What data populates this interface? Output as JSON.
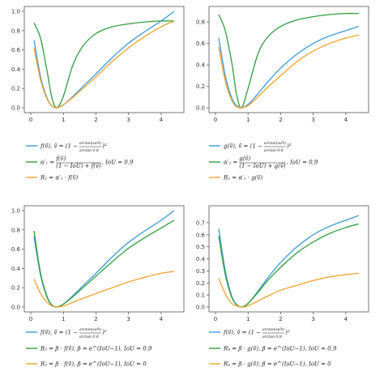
{
  "colors": {
    "blue": "#3a9ad9",
    "green": "#2e9e3e",
    "orange": "#f2a12a"
  },
  "chart_data": [
    {
      "type": "line",
      "xlim": [
        0,
        4.5
      ],
      "ylim": [
        0,
        1.0
      ],
      "xticks": [
        "0",
        "1",
        "2",
        "3",
        "4"
      ],
      "yticks": [
        "0.0",
        "0.2",
        "0.4",
        "0.6",
        "0.8",
        "1.0"
      ],
      "grid": false,
      "series": [
        {
          "color": "#3a9ad9",
          "x": [
            0.1,
            0.3,
            0.5,
            0.65,
            0.8,
            1.0,
            1.3,
            1.6,
            2.0,
            2.5,
            3.0,
            3.5,
            4.0,
            4.4
          ],
          "y": [
            0.7,
            0.32,
            0.1,
            0.02,
            0.0,
            0.03,
            0.12,
            0.22,
            0.35,
            0.52,
            0.67,
            0.79,
            0.9,
            1.0
          ]
        },
        {
          "color": "#2e9e3e",
          "x": [
            0.1,
            0.3,
            0.5,
            0.65,
            0.8,
            1.0,
            1.3,
            1.6,
            2.0,
            2.5,
            3.0,
            3.5,
            4.0,
            4.4
          ],
          "y": [
            0.88,
            0.72,
            0.38,
            0.1,
            0.0,
            0.12,
            0.45,
            0.64,
            0.77,
            0.84,
            0.87,
            0.89,
            0.9,
            0.9
          ]
        },
        {
          "color": "#f2a12a",
          "x": [
            0.1,
            0.3,
            0.5,
            0.65,
            0.8,
            1.0,
            1.3,
            1.6,
            2.0,
            2.5,
            3.0,
            3.5,
            4.0,
            4.4
          ],
          "y": [
            0.62,
            0.29,
            0.09,
            0.02,
            0.0,
            0.03,
            0.11,
            0.2,
            0.32,
            0.48,
            0.62,
            0.74,
            0.84,
            0.9
          ]
        }
      ],
      "legend": [
        {
          "color": "#3a9ad9",
          "text": "f(v̄), v̄ = (1 −",
          "frac_num": "arctan(w/h)",
          "frac_den": "arctan 0.8",
          "tail": ")²"
        },
        {
          "color": "#2e9e3e",
          "text": "α′₁ =",
          "frac_num": "f(v̄)",
          "frac_den": "(1 − IoU) + f(v̄)",
          "tail": ", IoU = 0.9"
        },
        {
          "color": "#f2a12a",
          "text": "R₁ = α′₁ · f(v̄)",
          "frac_num": "",
          "frac_den": "",
          "tail": ""
        }
      ]
    },
    {
      "type": "line",
      "xlim": [
        0,
        4.5
      ],
      "ylim": [
        0,
        0.9
      ],
      "xticks": [
        "0",
        "1",
        "2",
        "3",
        "4"
      ],
      "yticks": [
        "0.0",
        "0.2",
        "0.4",
        "0.6",
        "0.8"
      ],
      "grid": false,
      "series": [
        {
          "color": "#3a9ad9",
          "x": [
            0.1,
            0.3,
            0.5,
            0.65,
            0.8,
            1.0,
            1.3,
            1.6,
            2.0,
            2.5,
            3.0,
            3.5,
            4.0,
            4.4
          ],
          "y": [
            0.65,
            0.3,
            0.09,
            0.02,
            0.0,
            0.03,
            0.13,
            0.24,
            0.37,
            0.5,
            0.6,
            0.67,
            0.72,
            0.76
          ]
        },
        {
          "color": "#2e9e3e",
          "x": [
            0.1,
            0.3,
            0.5,
            0.65,
            0.8,
            1.0,
            1.3,
            1.6,
            2.0,
            2.5,
            3.0,
            3.5,
            4.0,
            4.4
          ],
          "y": [
            0.87,
            0.72,
            0.42,
            0.12,
            0.0,
            0.18,
            0.5,
            0.66,
            0.76,
            0.82,
            0.85,
            0.87,
            0.88,
            0.88
          ]
        },
        {
          "color": "#f2a12a",
          "x": [
            0.1,
            0.3,
            0.5,
            0.65,
            0.8,
            1.0,
            1.3,
            1.6,
            2.0,
            2.5,
            3.0,
            3.5,
            4.0,
            4.4
          ],
          "y": [
            0.57,
            0.25,
            0.07,
            0.01,
            0.0,
            0.02,
            0.1,
            0.19,
            0.3,
            0.43,
            0.53,
            0.6,
            0.65,
            0.68
          ]
        }
      ],
      "legend": [
        {
          "color": "#3a9ad9",
          "text": "g(v̄), v̄ = (1 −",
          "frac_num": "arctan(w/h)",
          "frac_den": "arctan 0.8",
          "tail": ")²"
        },
        {
          "color": "#2e9e3e",
          "text": "α′₂ =",
          "frac_num": "g(v̄)",
          "frac_den": "(1 − IoU) + g(v̄)",
          "tail": ", IoU = 0.9"
        },
        {
          "color": "#f2a12a",
          "text": "R₂ = α′₂ · g(v̄)",
          "frac_num": "",
          "frac_den": "",
          "tail": ""
        }
      ]
    },
    {
      "type": "line",
      "xlim": [
        0,
        4.5
      ],
      "ylim": [
        0,
        1.0
      ],
      "xticks": [
        "0",
        "1",
        "2",
        "3",
        "4"
      ],
      "yticks": [
        "0.0",
        "0.2",
        "0.4",
        "0.6",
        "0.8",
        "1.0"
      ],
      "grid": false,
      "series": [
        {
          "color": "#3a9ad9",
          "x": [
            0.1,
            0.3,
            0.5,
            0.65,
            0.8,
            1.0,
            1.3,
            1.6,
            2.0,
            2.5,
            3.0,
            3.5,
            4.0,
            4.4
          ],
          "y": [
            0.73,
            0.33,
            0.1,
            0.02,
            0.0,
            0.03,
            0.12,
            0.22,
            0.35,
            0.52,
            0.67,
            0.79,
            0.9,
            1.0
          ]
        },
        {
          "color": "#2e9e3e",
          "x": [
            0.1,
            0.3,
            0.5,
            0.65,
            0.8,
            1.0,
            1.3,
            1.6,
            2.0,
            2.5,
            3.0,
            3.5,
            4.0,
            4.4
          ],
          "y": [
            0.79,
            0.35,
            0.11,
            0.02,
            0.0,
            0.03,
            0.11,
            0.2,
            0.32,
            0.47,
            0.61,
            0.72,
            0.82,
            0.9
          ]
        },
        {
          "color": "#f2a12a",
          "x": [
            0.1,
            0.3,
            0.5,
            0.65,
            0.8,
            1.0,
            1.3,
            1.6,
            2.0,
            2.5,
            3.0,
            3.5,
            4.0,
            4.4
          ],
          "y": [
            0.29,
            0.14,
            0.05,
            0.01,
            0.0,
            0.01,
            0.05,
            0.09,
            0.14,
            0.2,
            0.26,
            0.31,
            0.35,
            0.37
          ]
        }
      ],
      "legend": [
        {
          "color": "#3a9ad9",
          "text": "f(v̄), v̄ = (1 −",
          "frac_num": "arctan(w/h)",
          "frac_den": "arctan 0.8",
          "tail": ")²"
        },
        {
          "color": "#2e9e3e",
          "text": "R₃ = β · f(v̄), β = e^(IoU−1), IoU = 0.9",
          "frac_num": "",
          "frac_den": "",
          "tail": ""
        },
        {
          "color": "#f2a12a",
          "text": "R₃ = β · f(v̄), β = e^(IoU−1), IoU = 0",
          "frac_num": "",
          "frac_den": "",
          "tail": ""
        }
      ]
    },
    {
      "type": "line",
      "xlim": [
        0,
        4.5
      ],
      "ylim": [
        0,
        0.8
      ],
      "xticks": [
        "0",
        "1",
        "2",
        "3",
        "4"
      ],
      "yticks": [
        "0.0",
        "0.1",
        "0.2",
        "0.3",
        "0.4",
        "0.5",
        "0.6",
        "0.7"
      ],
      "grid": false,
      "series": [
        {
          "color": "#3a9ad9",
          "x": [
            0.1,
            0.3,
            0.5,
            0.65,
            0.8,
            1.0,
            1.3,
            1.6,
            2.0,
            2.5,
            3.0,
            3.5,
            4.0,
            4.4
          ],
          "y": [
            0.65,
            0.3,
            0.09,
            0.02,
            0.0,
            0.03,
            0.13,
            0.24,
            0.37,
            0.5,
            0.6,
            0.67,
            0.72,
            0.76
          ]
        },
        {
          "color": "#2e9e3e",
          "x": [
            0.1,
            0.3,
            0.5,
            0.65,
            0.8,
            1.0,
            1.3,
            1.6,
            2.0,
            2.5,
            3.0,
            3.5,
            4.0,
            4.4
          ],
          "y": [
            0.59,
            0.27,
            0.08,
            0.02,
            0.0,
            0.03,
            0.12,
            0.22,
            0.33,
            0.45,
            0.54,
            0.61,
            0.66,
            0.69
          ]
        },
        {
          "color": "#f2a12a",
          "x": [
            0.1,
            0.3,
            0.5,
            0.65,
            0.8,
            1.0,
            1.3,
            1.6,
            2.0,
            2.5,
            3.0,
            3.5,
            4.0,
            4.4
          ],
          "y": [
            0.24,
            0.11,
            0.03,
            0.01,
            0.0,
            0.01,
            0.05,
            0.09,
            0.14,
            0.18,
            0.22,
            0.25,
            0.27,
            0.28
          ]
        }
      ],
      "legend": [
        {
          "color": "#3a9ad9",
          "text": "f(v̄), v̄ = (1 −",
          "frac_num": "arctan(w/h)",
          "frac_den": "arctan 0.8",
          "tail": ")²"
        },
        {
          "color": "#2e9e3e",
          "text": "R₄ = β · g(v̄), β = e^(IoU−1), IoU = 0.9",
          "frac_num": "",
          "frac_den": "",
          "tail": ""
        },
        {
          "color": "#f2a12a",
          "text": "R₄ = β · g(v̄), β = e^(IoU−1), IoU = 0",
          "frac_num": "",
          "frac_den": "",
          "tail": ""
        }
      ]
    }
  ]
}
